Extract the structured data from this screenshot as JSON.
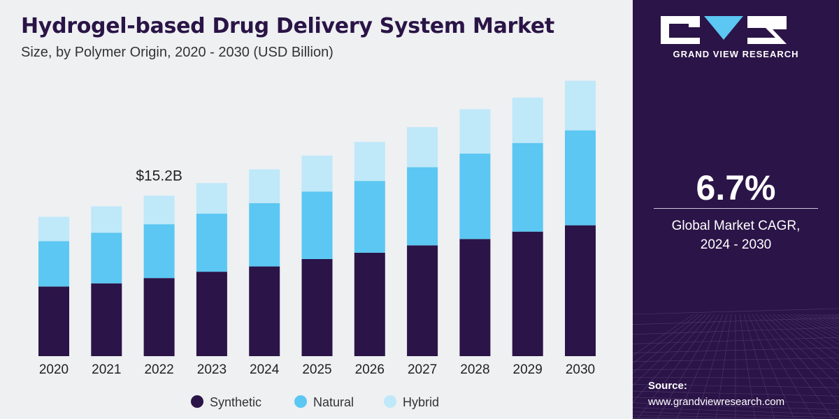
{
  "header": {
    "title": "Hydrogel-based Drug Delivery System Market",
    "subtitle": "Size, by Polymer Origin, 2020 - 2030 (USD Billion)"
  },
  "brand": {
    "name": "GRAND VIEW RESEARCH"
  },
  "stat": {
    "value": "6.7%",
    "label_line1": "Global Market CAGR,",
    "label_line2": "2024 - 2030"
  },
  "source": {
    "label": "Source:",
    "url": "www.grandviewresearch.com"
  },
  "colors": {
    "Synthetic": "#2b1447",
    "Natural": "#5bc7f2",
    "Hybrid": "#bfe8f9",
    "panel": "#2b1447"
  },
  "chart_data": {
    "type": "bar",
    "stacked": true,
    "categories": [
      "2020",
      "2021",
      "2022",
      "2023",
      "2024",
      "2025",
      "2026",
      "2027",
      "2028",
      "2029",
      "2030"
    ],
    "series": [
      {
        "name": "Synthetic",
        "values": [
          6.6,
          6.9,
          7.4,
          8.0,
          8.5,
          9.2,
          9.8,
          10.5,
          11.1,
          11.8,
          12.4
        ]
      },
      {
        "name": "Natural",
        "values": [
          4.3,
          4.8,
          5.1,
          5.5,
          6.0,
          6.4,
          6.8,
          7.4,
          8.1,
          8.4,
          9.0
        ]
      },
      {
        "name": "Hybrid",
        "values": [
          2.3,
          2.5,
          2.7,
          2.9,
          3.2,
          3.4,
          3.7,
          3.8,
          4.2,
          4.3,
          4.7
        ]
      }
    ],
    "annotations": [
      {
        "category": "2022",
        "text": "$15.2B"
      }
    ],
    "ylim": [
      0,
      27
    ],
    "xlabel": "",
    "ylabel": "",
    "grid": false,
    "legend": "bottom"
  }
}
